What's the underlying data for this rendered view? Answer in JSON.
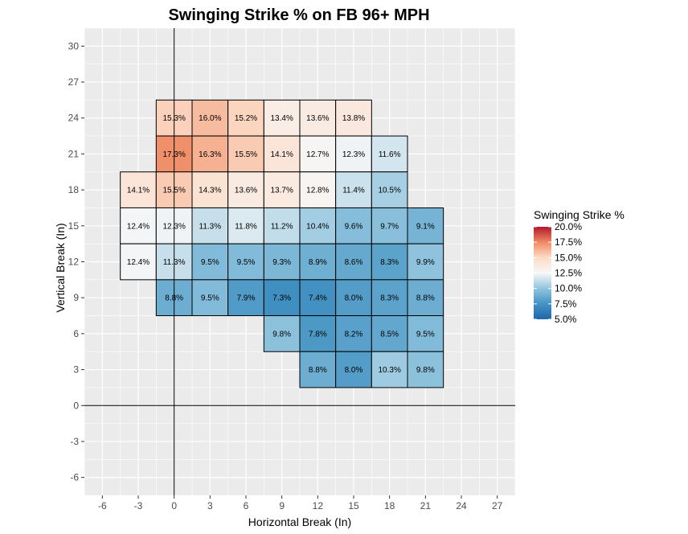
{
  "chart_data": {
    "type": "heatmap",
    "title": "Swinging Strike % on FB 96+ MPH",
    "xlabel": "Horizontal Break (In)",
    "ylabel": "Vertical Break (In)",
    "xlim": [
      -7.5,
      28.5
    ],
    "ylim": [
      -7.5,
      31.5
    ],
    "x_ticks": [
      -6,
      -3,
      0,
      3,
      6,
      9,
      12,
      15,
      18,
      21,
      24,
      27
    ],
    "y_ticks": [
      -6,
      -3,
      0,
      3,
      6,
      9,
      12,
      15,
      18,
      21,
      24,
      27,
      30
    ],
    "x_tick_labels": [
      "-6",
      "-3",
      "0",
      "3",
      "6",
      "9",
      "12",
      "15",
      "18",
      "21",
      "24",
      "27"
    ],
    "y_tick_labels": [
      "-6",
      "-3",
      "0",
      "3",
      "6",
      "9",
      "12",
      "15",
      "18",
      "21",
      "24",
      "27",
      "30"
    ],
    "reference_lines": {
      "x": 0,
      "y": 0
    },
    "grid": true,
    "cells": [
      {
        "x": 0,
        "y": 24,
        "value": 15.3,
        "label": "15.3%"
      },
      {
        "x": 3,
        "y": 24,
        "value": 16.0,
        "label": "16.0%"
      },
      {
        "x": 6,
        "y": 24,
        "value": 15.2,
        "label": "15.2%"
      },
      {
        "x": 9,
        "y": 24,
        "value": 13.4,
        "label": "13.4%"
      },
      {
        "x": 12,
        "y": 24,
        "value": 13.6,
        "label": "13.6%"
      },
      {
        "x": 15,
        "y": 24,
        "value": 13.8,
        "label": "13.8%"
      },
      {
        "x": 0,
        "y": 21,
        "value": 17.3,
        "label": "17.3%"
      },
      {
        "x": 3,
        "y": 21,
        "value": 16.3,
        "label": "16.3%"
      },
      {
        "x": 6,
        "y": 21,
        "value": 15.5,
        "label": "15.5%"
      },
      {
        "x": 9,
        "y": 21,
        "value": 14.1,
        "label": "14.1%"
      },
      {
        "x": 12,
        "y": 21,
        "value": 12.7,
        "label": "12.7%"
      },
      {
        "x": 15,
        "y": 21,
        "value": 12.3,
        "label": "12.3%"
      },
      {
        "x": 18,
        "y": 21,
        "value": 11.6,
        "label": "11.6%"
      },
      {
        "x": -3,
        "y": 18,
        "value": 14.1,
        "label": "14.1%"
      },
      {
        "x": 0,
        "y": 18,
        "value": 15.5,
        "label": "15.5%"
      },
      {
        "x": 3,
        "y": 18,
        "value": 14.3,
        "label": "14.3%"
      },
      {
        "x": 6,
        "y": 18,
        "value": 13.6,
        "label": "13.6%"
      },
      {
        "x": 9,
        "y": 18,
        "value": 13.7,
        "label": "13.7%"
      },
      {
        "x": 12,
        "y": 18,
        "value": 12.8,
        "label": "12.8%"
      },
      {
        "x": 15,
        "y": 18,
        "value": 11.4,
        "label": "11.4%"
      },
      {
        "x": 18,
        "y": 18,
        "value": 10.5,
        "label": "10.5%"
      },
      {
        "x": -3,
        "y": 15,
        "value": 12.4,
        "label": "12.4%"
      },
      {
        "x": 0,
        "y": 15,
        "value": 12.3,
        "label": "12.3%"
      },
      {
        "x": 3,
        "y": 15,
        "value": 11.3,
        "label": "11.3%"
      },
      {
        "x": 6,
        "y": 15,
        "value": 11.8,
        "label": "11.8%"
      },
      {
        "x": 9,
        "y": 15,
        "value": 11.2,
        "label": "11.2%"
      },
      {
        "x": 12,
        "y": 15,
        "value": 10.4,
        "label": "10.4%"
      },
      {
        "x": 15,
        "y": 15,
        "value": 9.6,
        "label": "9.6%"
      },
      {
        "x": 18,
        "y": 15,
        "value": 9.7,
        "label": "9.7%"
      },
      {
        "x": 21,
        "y": 15,
        "value": 9.1,
        "label": "9.1%"
      },
      {
        "x": -3,
        "y": 12,
        "value": 12.4,
        "label": "12.4%"
      },
      {
        "x": 0,
        "y": 12,
        "value": 11.3,
        "label": "11.3%"
      },
      {
        "x": 3,
        "y": 12,
        "value": 9.5,
        "label": "9.5%"
      },
      {
        "x": 6,
        "y": 12,
        "value": 9.5,
        "label": "9.5%"
      },
      {
        "x": 9,
        "y": 12,
        "value": 9.3,
        "label": "9.3%"
      },
      {
        "x": 12,
        "y": 12,
        "value": 8.9,
        "label": "8.9%"
      },
      {
        "x": 15,
        "y": 12,
        "value": 8.6,
        "label": "8.6%"
      },
      {
        "x": 18,
        "y": 12,
        "value": 8.3,
        "label": "8.3%"
      },
      {
        "x": 21,
        "y": 12,
        "value": 9.9,
        "label": "9.9%"
      },
      {
        "x": 0,
        "y": 9,
        "value": 8.8,
        "label": "8.8%"
      },
      {
        "x": 3,
        "y": 9,
        "value": 9.5,
        "label": "9.5%"
      },
      {
        "x": 6,
        "y": 9,
        "value": 7.9,
        "label": "7.9%"
      },
      {
        "x": 9,
        "y": 9,
        "value": 7.3,
        "label": "7.3%"
      },
      {
        "x": 12,
        "y": 9,
        "value": 7.4,
        "label": "7.4%"
      },
      {
        "x": 15,
        "y": 9,
        "value": 8.0,
        "label": "8.0%"
      },
      {
        "x": 18,
        "y": 9,
        "value": 8.3,
        "label": "8.3%"
      },
      {
        "x": 21,
        "y": 9,
        "value": 8.8,
        "label": "8.8%"
      },
      {
        "x": 9,
        "y": 6,
        "value": 9.8,
        "label": "9.8%"
      },
      {
        "x": 12,
        "y": 6,
        "value": 7.8,
        "label": "7.8%"
      },
      {
        "x": 15,
        "y": 6,
        "value": 8.2,
        "label": "8.2%"
      },
      {
        "x": 18,
        "y": 6,
        "value": 8.5,
        "label": "8.5%"
      },
      {
        "x": 21,
        "y": 6,
        "value": 9.5,
        "label": "9.5%"
      },
      {
        "x": 12,
        "y": 3,
        "value": 8.8,
        "label": "8.8%"
      },
      {
        "x": 15,
        "y": 3,
        "value": 8.0,
        "label": "8.0%"
      },
      {
        "x": 18,
        "y": 3,
        "value": 10.3,
        "label": "10.3%"
      },
      {
        "x": 21,
        "y": 3,
        "value": 9.8,
        "label": "9.8%"
      }
    ],
    "legend": {
      "title": "Swinging Strike %",
      "position": "right",
      "range": [
        5.0,
        20.0
      ],
      "breaks": [
        20.0,
        17.5,
        15.0,
        12.5,
        10.0,
        7.5,
        5.0
      ],
      "break_labels": [
        "20.0%",
        "17.5%",
        "15.0%",
        "12.5%",
        "10.0%",
        "7.5%",
        "5.0%"
      ],
      "colors": [
        {
          "value": 5.0,
          "color": "#2166ac"
        },
        {
          "value": 7.5,
          "color": "#4393c3"
        },
        {
          "value": 10.0,
          "color": "#92c5de"
        },
        {
          "value": 12.5,
          "color": "#f7f7f7"
        },
        {
          "value": 15.0,
          "color": "#fddbc7"
        },
        {
          "value": 17.5,
          "color": "#ef8a62"
        },
        {
          "value": 20.0,
          "color": "#b2182b"
        }
      ]
    },
    "panel_background": "#ebebeb",
    "grid_color": "#ffffff"
  }
}
